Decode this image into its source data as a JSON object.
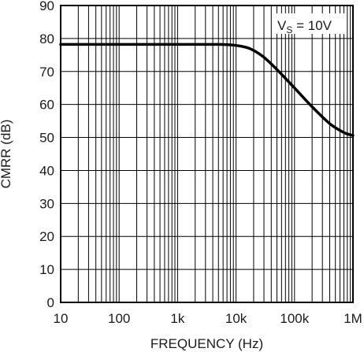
{
  "chart_data": {
    "type": "line",
    "xscale": "log",
    "xlim": [
      10,
      1000000
    ],
    "ylim": [
      0,
      90
    ],
    "xlabel": "FREQUENCY (Hz)",
    "ylabel": "CMRR (dB)",
    "x_ticks": [
      10,
      100,
      1000,
      10000,
      100000,
      1000000
    ],
    "x_tick_labels": [
      "10",
      "100",
      "1k",
      "10k",
      "100k",
      "1M"
    ],
    "y_ticks": [
      0,
      10,
      20,
      30,
      40,
      50,
      60,
      70,
      80,
      90
    ],
    "y_tick_labels": [
      "0",
      "10",
      "20",
      "30",
      "40",
      "50",
      "60",
      "70",
      "80",
      "90"
    ],
    "grid": true,
    "annotation": {
      "main": "V",
      "sub": "S",
      "rest": " = 10V"
    },
    "series": [
      {
        "x": [
          10,
          100,
          1000,
          5000,
          10000,
          15000,
          20000,
          30000,
          50000,
          100000,
          200000,
          400000,
          700000,
          1000000
        ],
        "y": [
          78.2,
          78.2,
          78.2,
          78.2,
          77.9,
          77.3,
          76.4,
          74.3,
          70.6,
          65.0,
          59.3,
          54.2,
          51.5,
          50.6
        ]
      }
    ],
    "colors": {
      "line": "#000000",
      "grid": "#000000",
      "text": "#1a1a1a"
    }
  }
}
